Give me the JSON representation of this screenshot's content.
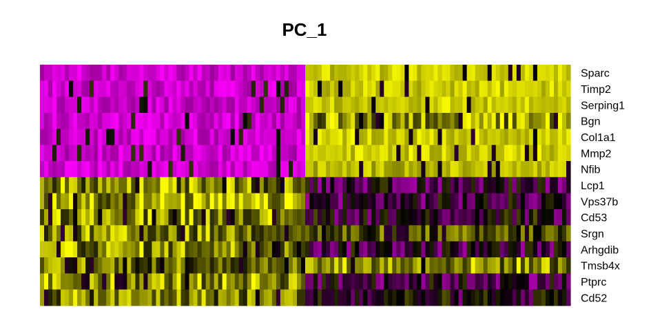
{
  "chart_data": {
    "type": "heatmap",
    "title": "PC_1",
    "xlabel": "",
    "ylabel": "",
    "rows": [
      "Sparc",
      "Timp2",
      "Serping1",
      "Bgn",
      "Col1a1",
      "Mmp2",
      "Nfib",
      "Lcp1",
      "Vps37b",
      "Cd53",
      "Srgn",
      "Arhgdib",
      "Tmsb4x",
      "Ptprc",
      "Cd52"
    ],
    "column_groups": [
      {
        "name": "",
        "size": 1
      },
      {
        "name": "",
        "size": 1
      }
    ],
    "block_means": [
      [
        -2.0,
        2.0
      ],
      [
        -2.0,
        2.0
      ],
      [
        -2.0,
        2.0
      ],
      [
        -2.0,
        1.5
      ],
      [
        -2.0,
        2.0
      ],
      [
        -2.0,
        2.0
      ],
      [
        -2.0,
        1.8
      ],
      [
        1.4,
        -0.5
      ],
      [
        1.6,
        -0.5
      ],
      [
        1.5,
        -0.3
      ],
      [
        1.3,
        0.6
      ],
      [
        1.4,
        -0.5
      ],
      [
        1.1,
        1.4
      ],
      [
        1.5,
        -0.5
      ],
      [
        1.3,
        -0.3
      ]
    ],
    "color_scale": {
      "low": "#ff00ff",
      "mid": "#000000",
      "high": "#ffff00"
    },
    "group_colors": [
      {
        "low": "#ff00ff",
        "mid": "#000000",
        "high": "#ffff00"
      },
      {
        "low": "#ff00ff",
        "mid": "#000000",
        "high": "#ffff00"
      }
    ],
    "legend": "none"
  }
}
